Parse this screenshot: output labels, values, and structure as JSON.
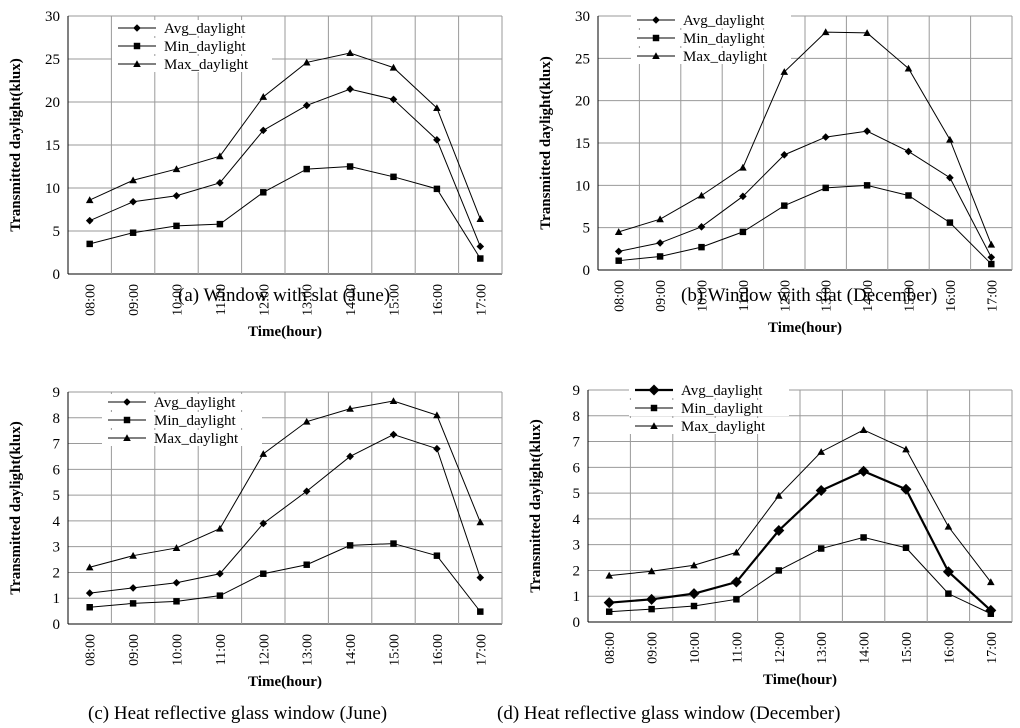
{
  "chart_data": [
    {
      "type": "line",
      "xlabel": "Time(hour)",
      "ylabel": "Transmitted daylight(klux)",
      "categories": [
        "08:00",
        "09:00",
        "10:00",
        "11:00",
        "12:00",
        "13:00",
        "14:00",
        "15:00",
        "16:00",
        "17:00"
      ],
      "ylim": [
        0,
        30
      ],
      "yticks": [
        0,
        5,
        10,
        15,
        20,
        25,
        30
      ],
      "grid": true,
      "legend": "top-left",
      "series": [
        {
          "name": "Avg_daylight",
          "marker": "diamond",
          "values": [
            6.2,
            8.4,
            9.1,
            10.6,
            16.7,
            19.6,
            21.5,
            20.3,
            15.6,
            3.2
          ]
        },
        {
          "name": "Min_daylight",
          "marker": "square",
          "values": [
            3.5,
            4.8,
            5.6,
            5.8,
            9.5,
            12.2,
            12.5,
            11.3,
            9.9,
            1.8
          ]
        },
        {
          "name": "Max_daylight",
          "marker": "triangle",
          "values": [
            8.6,
            10.9,
            12.2,
            13.7,
            20.6,
            24.6,
            25.7,
            24.0,
            19.3,
            6.4
          ]
        }
      ],
      "caption_label": "(a)",
      "caption": "Window with slat (June)"
    },
    {
      "type": "line",
      "xlabel": "Time(hour)",
      "ylabel": "Transmitted daylight(klux)",
      "categories": [
        "08:00",
        "09:00",
        "10:00",
        "11:00",
        "12:00",
        "13:00",
        "14:00",
        "15:00",
        "16:00",
        "17:00"
      ],
      "ylim": [
        0,
        30
      ],
      "yticks": [
        0,
        5,
        10,
        15,
        20,
        25,
        30
      ],
      "grid": true,
      "legend": "top-left",
      "series": [
        {
          "name": "Avg_daylight",
          "marker": "diamond",
          "values": [
            2.2,
            3.2,
            5.1,
            8.7,
            13.6,
            15.7,
            16.4,
            14.0,
            10.9,
            1.5
          ]
        },
        {
          "name": "Min_daylight",
          "marker": "square",
          "values": [
            1.1,
            1.6,
            2.7,
            4.5,
            7.6,
            9.7,
            10.0,
            8.8,
            5.6,
            0.7
          ]
        },
        {
          "name": "Max_daylight",
          "marker": "triangle",
          "values": [
            4.5,
            6.0,
            8.8,
            12.1,
            23.4,
            28.1,
            28.0,
            23.8,
            15.4,
            3.0
          ]
        }
      ],
      "caption_label": "(b)",
      "caption": "Window with slat (December)"
    },
    {
      "type": "line",
      "xlabel": "Time(hour)",
      "ylabel": "Transmitted daylight(klux)",
      "categories": [
        "08:00",
        "09:00",
        "10:00",
        "11:00",
        "12:00",
        "13:00",
        "14:00",
        "15:00",
        "16:00",
        "17:00"
      ],
      "ylim": [
        0,
        9
      ],
      "yticks": [
        0,
        1,
        2,
        3,
        4,
        5,
        6,
        7,
        8,
        9
      ],
      "grid": true,
      "legend": "top-left",
      "series": [
        {
          "name": "Avg_daylight",
          "marker": "diamond",
          "values": [
            1.2,
            1.4,
            1.6,
            1.95,
            3.9,
            5.15,
            6.5,
            7.35,
            6.8,
            1.8
          ]
        },
        {
          "name": "Min_daylight",
          "marker": "square",
          "values": [
            0.65,
            0.8,
            0.88,
            1.1,
            1.95,
            2.3,
            3.05,
            3.12,
            2.65,
            0.48
          ]
        },
        {
          "name": "Max_daylight",
          "marker": "triangle",
          "values": [
            2.2,
            2.65,
            2.95,
            3.7,
            6.6,
            7.85,
            8.35,
            8.65,
            8.1,
            3.95
          ]
        }
      ],
      "caption_label": "(c)",
      "caption": "Heat reflective glass window (June)"
    },
    {
      "type": "line",
      "xlabel": "Time(hour)",
      "ylabel": "Transmitted daylight(klux)",
      "categories": [
        "08:00",
        "09:00",
        "10:00",
        "11:00",
        "12:00",
        "13:00",
        "14:00",
        "15:00",
        "16:00",
        "17:00"
      ],
      "ylim": [
        0,
        9
      ],
      "yticks": [
        0,
        1,
        2,
        3,
        4,
        5,
        6,
        7,
        8,
        9
      ],
      "grid": true,
      "legend": "top-left",
      "series": [
        {
          "name": "Avg_daylight",
          "marker": "diamond",
          "emphasis": true,
          "values": [
            0.75,
            0.88,
            1.1,
            1.55,
            3.55,
            5.1,
            5.85,
            5.15,
            1.95,
            0.45
          ]
        },
        {
          "name": "Min_daylight",
          "marker": "square",
          "values": [
            0.4,
            0.5,
            0.62,
            0.88,
            2.0,
            2.85,
            3.28,
            2.88,
            1.1,
            0.32
          ]
        },
        {
          "name": "Max_daylight",
          "marker": "triangle",
          "values": [
            1.8,
            1.97,
            2.2,
            2.7,
            4.9,
            6.6,
            7.45,
            6.7,
            3.7,
            1.55
          ]
        }
      ],
      "caption_label": "(d)",
      "caption": "Heat reflective glass window (December)"
    }
  ]
}
